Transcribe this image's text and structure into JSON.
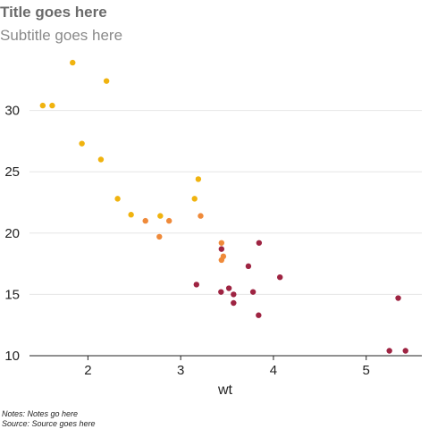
{
  "chart_data": {
    "type": "scatter",
    "title": "Title goes here",
    "subtitle": "Subtitle goes here",
    "xlabel": "wt",
    "ylabel": "",
    "xlim": [
      1.37,
      5.6
    ],
    "ylim": [
      10,
      35
    ],
    "x_ticks": [
      2,
      3,
      4,
      5
    ],
    "y_ticks": [
      10,
      15,
      20,
      25,
      30
    ],
    "grid": "horizontal",
    "legend": "none",
    "notes": "Notes: Notes go here",
    "source": "Source: Source goes here",
    "colors": {
      "high": "#f0b30f",
      "mid": "#ef8a3a",
      "low": "#9e2442"
    },
    "points": [
      {
        "x": 1.513,
        "y": 30.4,
        "group": "high"
      },
      {
        "x": 1.615,
        "y": 30.4,
        "group": "high"
      },
      {
        "x": 1.835,
        "y": 33.9,
        "group": "high"
      },
      {
        "x": 1.935,
        "y": 27.3,
        "group": "high"
      },
      {
        "x": 2.14,
        "y": 26.0,
        "group": "high"
      },
      {
        "x": 2.2,
        "y": 32.4,
        "group": "high"
      },
      {
        "x": 2.32,
        "y": 22.8,
        "group": "high"
      },
      {
        "x": 2.465,
        "y": 21.5,
        "group": "high"
      },
      {
        "x": 2.62,
        "y": 21.0,
        "group": "mid"
      },
      {
        "x": 2.77,
        "y": 19.7,
        "group": "mid"
      },
      {
        "x": 2.78,
        "y": 21.4,
        "group": "high"
      },
      {
        "x": 2.875,
        "y": 21.0,
        "group": "mid"
      },
      {
        "x": 3.15,
        "y": 22.8,
        "group": "high"
      },
      {
        "x": 3.17,
        "y": 15.8,
        "group": "low"
      },
      {
        "x": 3.19,
        "y": 24.4,
        "group": "high"
      },
      {
        "x": 3.215,
        "y": 21.4,
        "group": "mid"
      },
      {
        "x": 3.435,
        "y": 15.2,
        "group": "low"
      },
      {
        "x": 3.44,
        "y": 18.7,
        "group": "low"
      },
      {
        "x": 3.44,
        "y": 19.2,
        "group": "mid"
      },
      {
        "x": 3.44,
        "y": 17.8,
        "group": "mid"
      },
      {
        "x": 3.46,
        "y": 18.1,
        "group": "mid"
      },
      {
        "x": 3.52,
        "y": 15.5,
        "group": "low"
      },
      {
        "x": 3.57,
        "y": 15.0,
        "group": "low"
      },
      {
        "x": 3.57,
        "y": 14.3,
        "group": "low"
      },
      {
        "x": 3.73,
        "y": 17.3,
        "group": "low"
      },
      {
        "x": 3.78,
        "y": 15.2,
        "group": "low"
      },
      {
        "x": 3.84,
        "y": 13.3,
        "group": "low"
      },
      {
        "x": 3.845,
        "y": 19.2,
        "group": "low"
      },
      {
        "x": 4.07,
        "y": 16.4,
        "group": "low"
      },
      {
        "x": 5.25,
        "y": 10.4,
        "group": "low"
      },
      {
        "x": 5.345,
        "y": 14.7,
        "group": "low"
      },
      {
        "x": 5.424,
        "y": 10.4,
        "group": "low"
      }
    ]
  }
}
